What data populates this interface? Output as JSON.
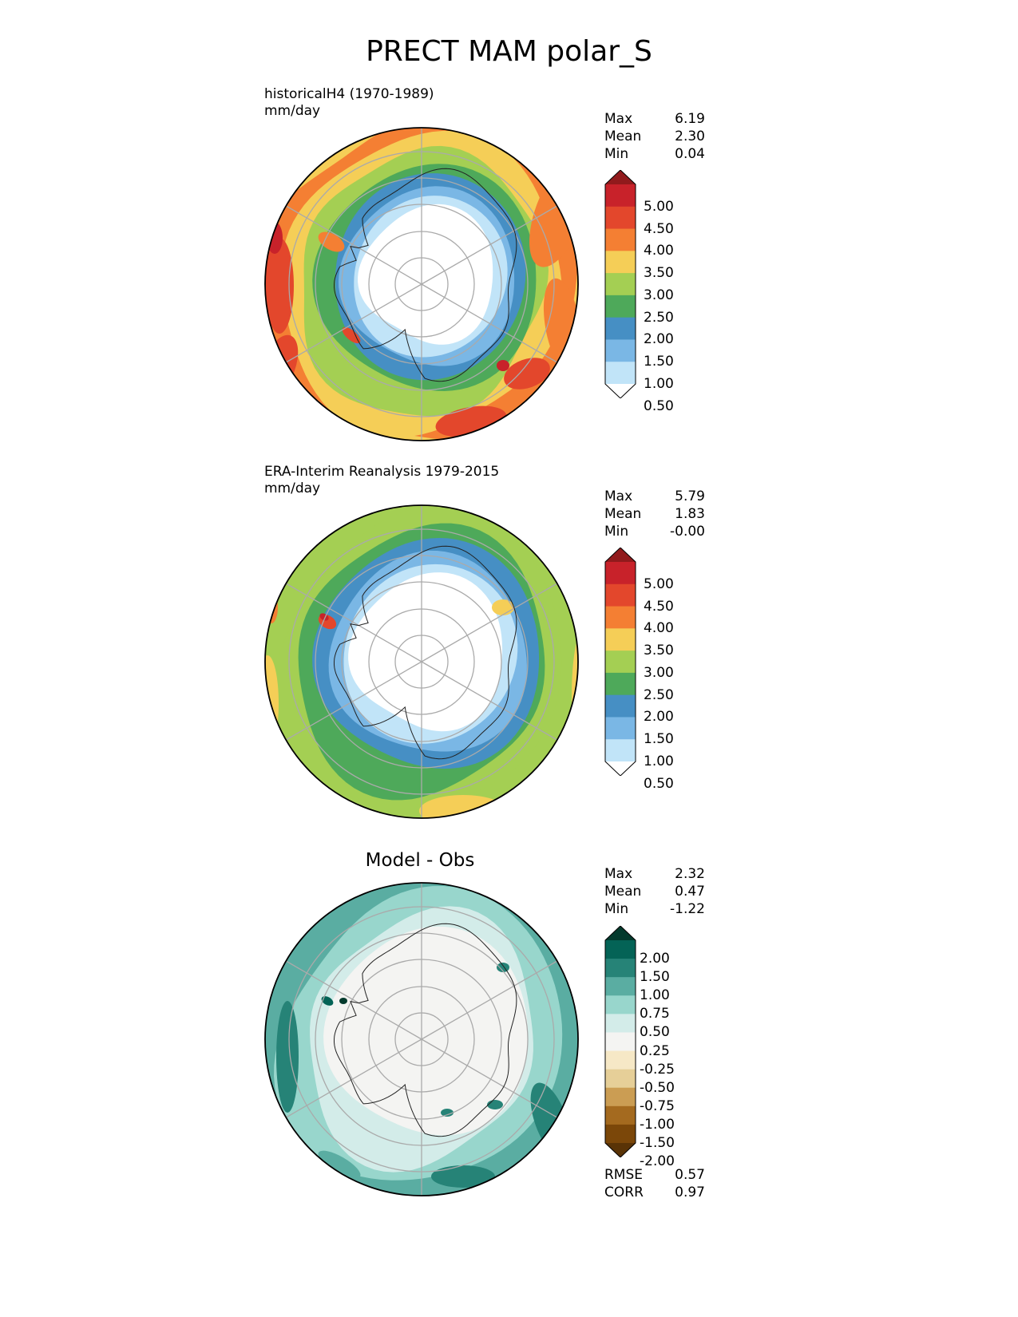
{
  "title": "PRECT MAM polar_S",
  "panels": [
    {
      "id": "test",
      "title_lines": [
        "historicalH4 (1970-1989)",
        "mm/day"
      ],
      "stats": [
        {
          "label": "Max",
          "value": "6.19"
        },
        {
          "label": "Mean",
          "value": "2.30"
        },
        {
          "label": "Min",
          "value": "0.04"
        }
      ],
      "colorbar": {
        "levels": [
          "5.00",
          "4.50",
          "4.00",
          "3.50",
          "3.00",
          "2.50",
          "2.00",
          "1.50",
          "1.00",
          "0.50"
        ],
        "colors": [
          "#911a1c",
          "#c8222a",
          "#e3472c",
          "#f47f33",
          "#f5ce57",
          "#a4cf53",
          "#4ea95a",
          "#468fc4",
          "#7ab7e5",
          "#c1e4f8",
          "#ffffff"
        ]
      }
    },
    {
      "id": "reference",
      "title_lines": [
        "ERA-Interim Reanalysis 1979-2015",
        "mm/day"
      ],
      "stats": [
        {
          "label": "Max",
          "value": "5.79"
        },
        {
          "label": "Mean",
          "value": "1.83"
        },
        {
          "label": "Min",
          "value": "-0.00"
        }
      ],
      "colorbar": {
        "levels": [
          "5.00",
          "4.50",
          "4.00",
          "3.50",
          "3.00",
          "2.50",
          "2.00",
          "1.50",
          "1.00",
          "0.50"
        ],
        "colors": [
          "#911a1c",
          "#c8222a",
          "#e3472c",
          "#f47f33",
          "#f5ce57",
          "#a4cf53",
          "#4ea95a",
          "#468fc4",
          "#7ab7e5",
          "#c1e4f8",
          "#ffffff"
        ]
      }
    },
    {
      "id": "difference",
      "title_lines": [
        "Model - Obs"
      ],
      "stats": [
        {
          "label": "Max",
          "value": "2.32"
        },
        {
          "label": "Mean",
          "value": "0.47"
        },
        {
          "label": "Min",
          "value": "-1.22"
        }
      ],
      "metrics": [
        {
          "label": "RMSE",
          "value": "0.57"
        },
        {
          "label": "CORR",
          "value": "0.97"
        }
      ],
      "colorbar": {
        "levels": [
          "2.00",
          "1.50",
          "1.00",
          "0.75",
          "0.50",
          "0.25",
          "-0.25",
          "-0.50",
          "-0.75",
          "-1.00",
          "-1.50",
          "-2.00"
        ],
        "colors": [
          "#033a2d",
          "#046356",
          "#268377",
          "#5aada2",
          "#98d6cc",
          "#d3ece9",
          "#f4f4f2",
          "#f6e8c6",
          "#e6cf98",
          "#cb9d53",
          "#a46a1f",
          "#7b4709",
          "#593306"
        ]
      }
    }
  ],
  "chart_data": [
    {
      "type": "heatmap",
      "projection": "south polar stereographic",
      "title": "historicalH4 (1970-1989)",
      "units": "mm/day",
      "season": "MAM",
      "variable": "PRECT",
      "contour_levels": [
        0.5,
        1.0,
        1.5,
        2.0,
        2.5,
        3.0,
        3.5,
        4.0,
        4.5,
        5.0
      ],
      "extend": "both",
      "max": 6.19,
      "mean": 2.3,
      "min": 0.04
    },
    {
      "type": "heatmap",
      "projection": "south polar stereographic",
      "title": "ERA-Interim Reanalysis 1979-2015",
      "units": "mm/day",
      "contour_levels": [
        0.5,
        1.0,
        1.5,
        2.0,
        2.5,
        3.0,
        3.5,
        4.0,
        4.5,
        5.0
      ],
      "extend": "both",
      "max": 5.79,
      "mean": 1.83,
      "min": -0.0
    },
    {
      "type": "heatmap",
      "projection": "south polar stereographic",
      "title": "Model - Obs",
      "contour_levels": [
        -2.0,
        -1.5,
        -1.0,
        -0.75,
        -0.5,
        -0.25,
        0.25,
        0.5,
        0.75,
        1.0,
        1.5,
        2.0
      ],
      "extend": "both",
      "max": 2.32,
      "mean": 0.47,
      "min": -1.22,
      "rmse": 0.57,
      "corr": 0.97
    }
  ]
}
